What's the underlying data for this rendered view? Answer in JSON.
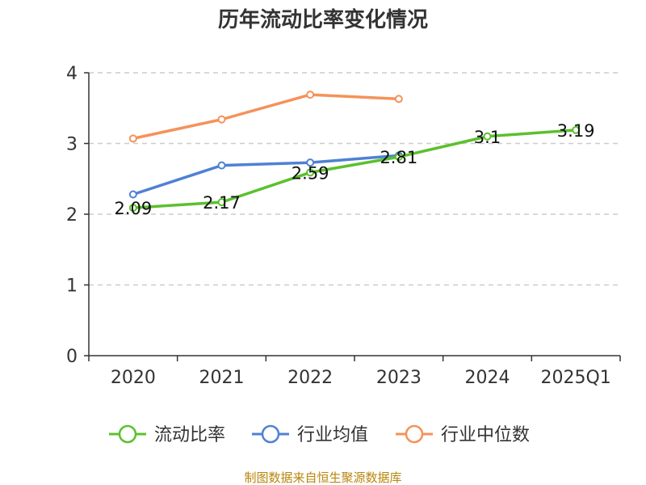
{
  "chart_data": {
    "type": "line",
    "title": "历年流动比率变化情况",
    "categories": [
      "2020",
      "2021",
      "2022",
      "2023",
      "2024",
      "2025Q1"
    ],
    "ylim": [
      0,
      4
    ],
    "yticks": [
      "0",
      "1",
      "2",
      "3",
      "4"
    ],
    "grid": true,
    "legend_position": "bottom",
    "series": [
      {
        "name": "流动比率",
        "color": "#5cc02e",
        "values": [
          2.09,
          2.17,
          2.59,
          2.81,
          3.1,
          3.19
        ],
        "labels": [
          "2.09",
          "2.17",
          "2.59",
          "2.81",
          "3.1",
          "3.19"
        ]
      },
      {
        "name": "行业均值",
        "color": "#4f81d4",
        "values": [
          2.28,
          2.69,
          2.73,
          2.83,
          null,
          null
        ],
        "labels": []
      },
      {
        "name": "行业中位数",
        "color": "#f5925a",
        "values": [
          3.07,
          3.34,
          3.69,
          3.63,
          null,
          null
        ],
        "labels": []
      }
    ],
    "source": "制图数据来自恒生聚源数据库"
  }
}
